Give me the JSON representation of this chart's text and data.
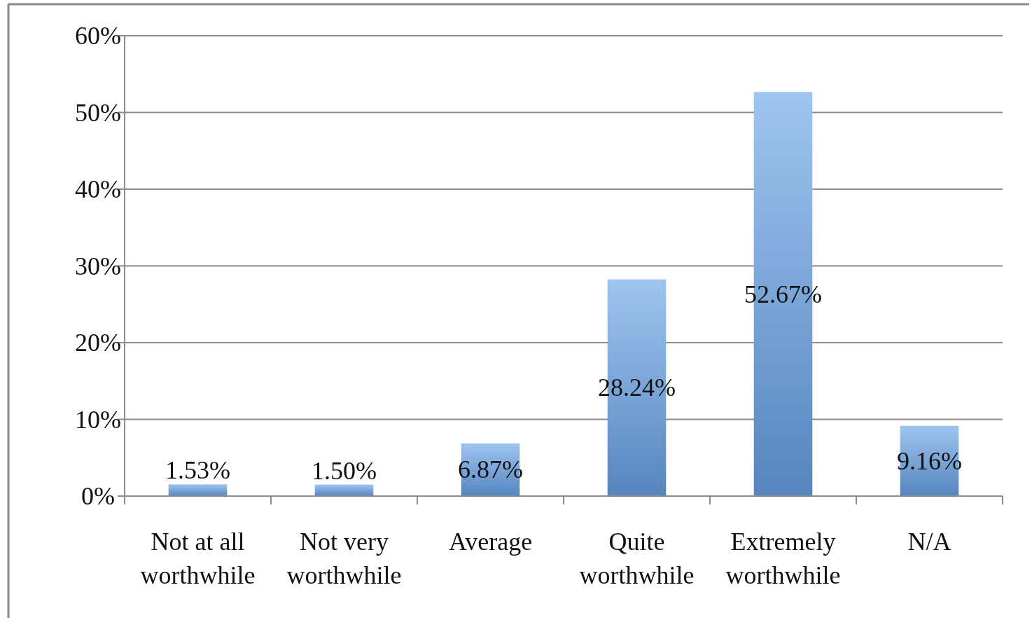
{
  "chart_data": {
    "type": "bar",
    "categories": [
      "Not at all worthwhile",
      "Not very worthwhile",
      "Average",
      "Quite worthwhile",
      "Extremely worthwhile",
      "N/A"
    ],
    "values": [
      1.53,
      1.5,
      6.87,
      28.24,
      52.67,
      9.16
    ],
    "value_labels": [
      "1.53%",
      "1.50%",
      "6.87%",
      "28.24%",
      "52.67%",
      "9.16%"
    ],
    "color": "#6aa5ea",
    "ylim": [
      0,
      60
    ],
    "yticks": [
      {
        "value": 0,
        "label": "0%"
      },
      {
        "value": 10,
        "label": "10%"
      },
      {
        "value": 20,
        "label": "20%"
      },
      {
        "value": 30,
        "label": "30%"
      },
      {
        "value": 40,
        "label": "40%"
      },
      {
        "value": 50,
        "label": "50%"
      },
      {
        "value": 60,
        "label": "60%"
      }
    ],
    "grid": "y"
  }
}
